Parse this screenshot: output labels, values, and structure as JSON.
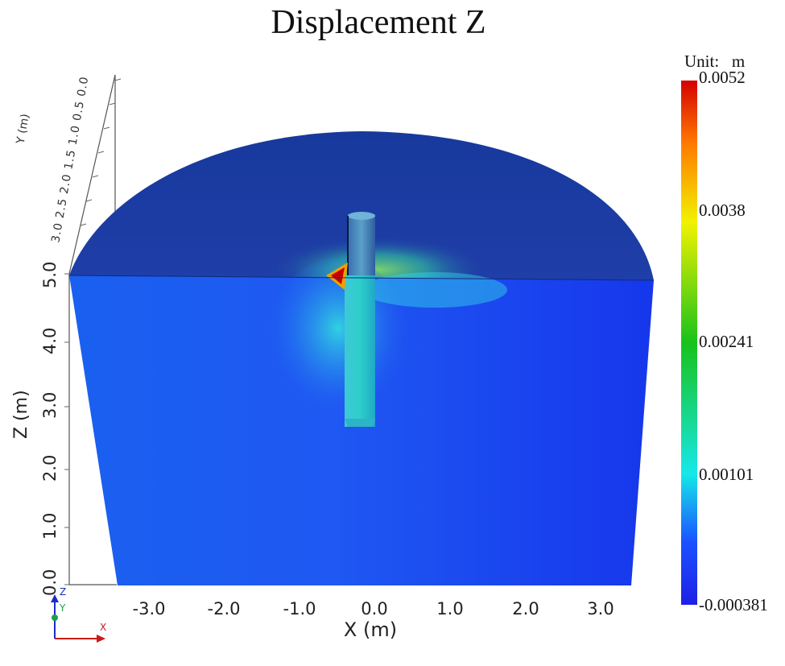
{
  "title": "Displacement Z",
  "colorbar": {
    "unit_label": "Unit:   m",
    "ticks": [
      "0.0052",
      "0.0038",
      "0.00241",
      "0.00101",
      "-0.000381"
    ],
    "colors": [
      "#d40000",
      "#ff7a00",
      "#f2f200",
      "#18c21a",
      "#16e8e8",
      "#1a52ff",
      "#1f1fe6"
    ]
  },
  "x_axis": {
    "label": "X (m)",
    "ticks": [
      "-3.0",
      "-2.0",
      "-1.0",
      "0.0",
      "1.0",
      "2.0",
      "3.0"
    ]
  },
  "z_axis": {
    "label": "Z (m)",
    "ticks": [
      "0.0",
      "1.0",
      "2.0",
      "3.0",
      "4.0",
      "5.0"
    ]
  },
  "y_axis": {
    "label": "Y (m)",
    "ticks": "3.0 2.5 2.0 1.5 1.0 0.5 0.0"
  },
  "triad": {
    "z": "Z",
    "y": "Y",
    "x": "X"
  }
}
